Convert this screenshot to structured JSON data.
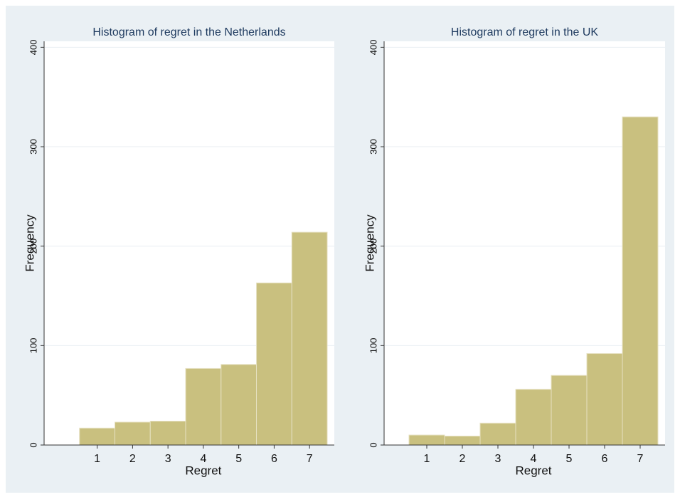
{
  "chart_data": [
    {
      "type": "histogram",
      "title": "Histogram of regret in the Netherlands",
      "xlabel": "Regret",
      "ylabel": "Frequency",
      "bins": [
        0.5,
        1.5,
        2.5,
        3.5,
        4.5,
        5.5,
        6.5,
        7.5
      ],
      "values": [
        17,
        23,
        24,
        77,
        81,
        163,
        214
      ],
      "color": "#c9c07f",
      "xlim": [
        -0.5,
        7.7
      ],
      "ylim": [
        0,
        406
      ],
      "xticks": [
        1,
        2,
        3,
        4,
        5,
        6,
        7
      ],
      "yticks": [
        0,
        100,
        200,
        300,
        400
      ],
      "grid": true
    },
    {
      "type": "histogram",
      "title": "Histogram of regret in the UK",
      "xlabel": "Regret",
      "ylabel": "Frequency",
      "bins": [
        0.5,
        1.5,
        2.5,
        3.5,
        4.5,
        5.5,
        6.5,
        7.5
      ],
      "values": [
        10,
        9,
        22,
        56,
        70,
        92,
        330
      ],
      "color": "#c9c07f",
      "xlim": [
        -0.2,
        7.7
      ],
      "ylim": [
        0,
        406
      ],
      "xticks": [
        1,
        2,
        3,
        4,
        5,
        6,
        7
      ],
      "yticks": [
        0,
        100,
        200,
        300,
        400
      ],
      "grid": true
    }
  ]
}
